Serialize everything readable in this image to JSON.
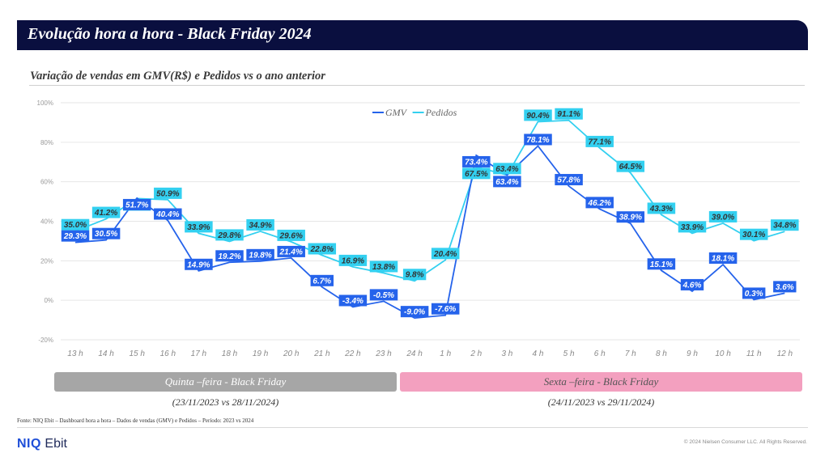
{
  "header": {
    "title": "Evolução hora a hora - Black Friday 2024",
    "subtitle": "Variação de vendas em GMV(R$) e Pedidos vs o ano anterior"
  },
  "chart_data": {
    "type": "line",
    "categories": [
      "13 h",
      "14 h",
      "15 h",
      "16 h",
      "17 h",
      "18 h",
      "19 h",
      "20 h",
      "21 h",
      "22 h",
      "23 h",
      "24 h",
      "1 h",
      "2 h",
      "3 h",
      "4 h",
      "5 h",
      "6 h",
      "7 h",
      "8 h",
      "9 h",
      "10 h",
      "11 h",
      "12 h"
    ],
    "yticks": [
      "100%",
      "80%",
      "60%",
      "40%",
      "20%",
      "0%",
      "-20%"
    ],
    "ylim": [
      -20,
      100
    ],
    "legend_position": "top-center",
    "series": [
      {
        "name": "GMV",
        "color": "#2563eb",
        "values": [
          29.3,
          30.5,
          51.7,
          40.4,
          14.9,
          19.2,
          19.8,
          21.4,
          6.7,
          -3.4,
          -0.5,
          -9.0,
          -7.6,
          73.4,
          63.4,
          78.1,
          57.8,
          46.2,
          38.9,
          15.1,
          4.6,
          18.1,
          0.3,
          3.6
        ],
        "labels": [
          "29.3%",
          "30.5%",
          "51.7%",
          "40.4%",
          "14.9%",
          "19.2%",
          "19.8%",
          "21.4%",
          "6.7%",
          "-3.4%",
          "-0.5%",
          "-9.0%",
          "-7.6%",
          "73.4%",
          "63.4%",
          "78.1%",
          "57.8%",
          "46.2%",
          "38.9%",
          "15.1%",
          "4.6%",
          "18.1%",
          "0.3%",
          "3.6%"
        ]
      },
      {
        "name": "Pedidos",
        "color": "#33d0f0",
        "values": [
          35.0,
          41.2,
          51.5,
          50.9,
          33.9,
          29.8,
          34.9,
          29.6,
          22.8,
          16.9,
          13.8,
          9.8,
          20.4,
          67.5,
          63.4,
          90.4,
          91.1,
          77.1,
          64.5,
          43.3,
          33.9,
          39.0,
          30.1,
          34.8
        ],
        "labels": [
          "35.0%",
          "41.2%",
          "51.5%",
          "50.9%",
          "33.9%",
          "29.8%",
          "34.9%",
          "29.6%",
          "22.8%",
          "16.9%",
          "13.8%",
          "9.8%",
          "20.4%",
          "67.5%",
          "63.4%",
          "90.4%",
          "91.1%",
          "77.1%",
          "64.5%",
          "43.3%",
          "33.9%",
          "39.0%",
          "30.1%",
          "34.8%"
        ]
      }
    ]
  },
  "bands": {
    "left": {
      "label": "Quinta –feira - Black Friday",
      "period": "(23/11/2023 vs 28/11/2024)"
    },
    "right": {
      "label": "Sexta –feira - Black Friday",
      "period": "(24/11/2023 vs 29/11/2024)"
    }
  },
  "footer": {
    "source": "Fonte: NIQ Ebit – Dashboard hora a hora – Dados de vendas (GMV) e Pedidos – Período: 2023 vs 2024",
    "logo_brand": "NIQ",
    "logo_product": "Ebit",
    "copyright": "© 2024 Nielsen Consumer LLC. All Rights Reserved."
  }
}
